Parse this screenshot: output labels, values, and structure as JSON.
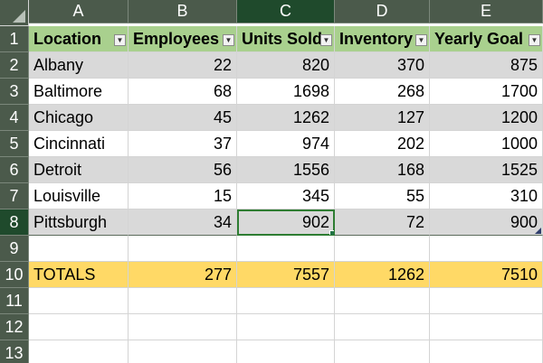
{
  "columns": [
    "A",
    "B",
    "C",
    "D",
    "E"
  ],
  "rows": [
    "1",
    "2",
    "3",
    "4",
    "5",
    "6",
    "7",
    "8",
    "9",
    "10",
    "11",
    "12",
    "13"
  ],
  "table": {
    "headers": [
      "Location",
      "Employees",
      "Units Sold",
      "Inventory",
      "Yearly Goal"
    ],
    "filter_icon": "dropdown-arrow-icon",
    "data": [
      [
        "Albany",
        "22",
        "820",
        "370",
        "875"
      ],
      [
        "Baltimore",
        "68",
        "1698",
        "268",
        "1700"
      ],
      [
        "Chicago",
        "45",
        "1262",
        "127",
        "1200"
      ],
      [
        "Cincinnati",
        "37",
        "974",
        "202",
        "1000"
      ],
      [
        "Detroit",
        "56",
        "1556",
        "168",
        "1525"
      ],
      [
        "Louisville",
        "15",
        "345",
        "55",
        "310"
      ],
      [
        "Pittsburgh",
        "34",
        "902",
        "72",
        "900"
      ]
    ]
  },
  "totals": [
    "TOTALS",
    "277",
    "7557",
    "1262",
    "7510"
  ],
  "active_cell": "C8",
  "colors": {
    "header_fill": "#a9d08e",
    "band_fill": "#d9d9d9",
    "totals_fill": "#ffd966",
    "grid_header": "#4b5a4b",
    "selected_header": "#1f4a2c"
  }
}
